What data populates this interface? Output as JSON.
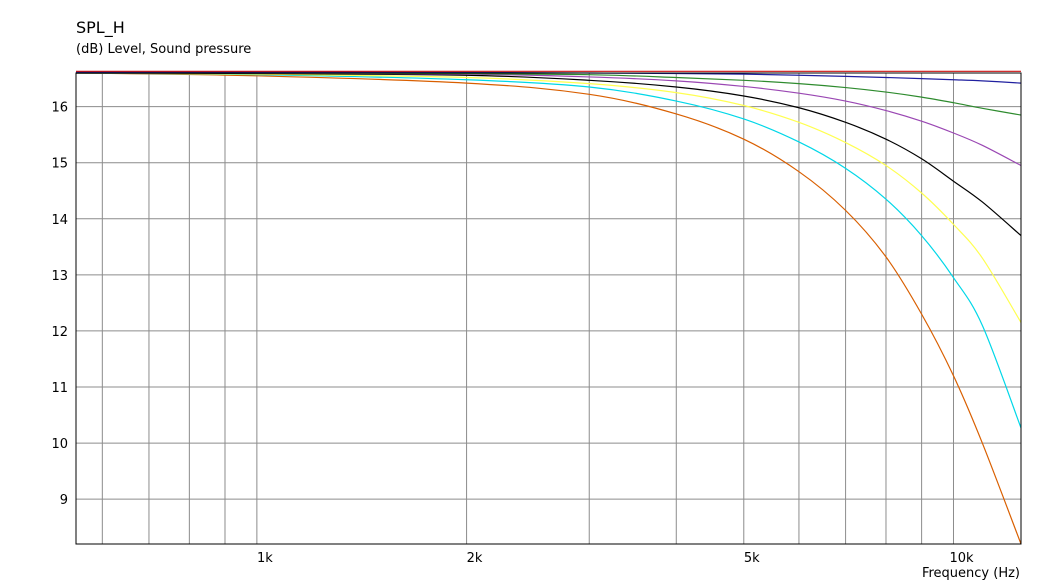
{
  "chart_data": {
    "type": "line",
    "title": "SPL_H",
    "ylabel": "(dB)  Level, Sound pressure",
    "xlabel": "Frequency  (Hz)",
    "x_scale": "log",
    "xlim": [
      550,
      12500
    ],
    "ylim": [
      8.2,
      16.6
    ],
    "grid": true,
    "x_ticks": [
      {
        "value": 1000,
        "label": "1k"
      },
      {
        "value": 2000,
        "label": "2k"
      },
      {
        "value": 5000,
        "label": "5k"
      },
      {
        "value": 10000,
        "label": "10k"
      }
    ],
    "y_ticks": [
      {
        "value": 16,
        "label": "16"
      },
      {
        "value": 15,
        "label": "15"
      },
      {
        "value": 14,
        "label": "14"
      },
      {
        "value": 13,
        "label": "13"
      },
      {
        "value": 12,
        "label": "12"
      },
      {
        "value": 11,
        "label": "11"
      },
      {
        "value": 10,
        "label": "10"
      },
      {
        "value": 9,
        "label": "9"
      }
    ],
    "x": [
      550,
      1000,
      2000,
      3000,
      4000,
      5000,
      6000,
      7000,
      8000,
      9000,
      10000,
      11000,
      12500
    ],
    "series": [
      {
        "color": "#d95f00",
        "values": [
          16.6,
          16.55,
          16.42,
          16.22,
          15.87,
          15.42,
          14.84,
          14.15,
          13.32,
          12.3,
          11.2,
          10.0,
          8.2
        ]
      },
      {
        "color": "#00d7e8",
        "values": [
          16.6,
          16.57,
          16.48,
          16.35,
          16.1,
          15.78,
          15.37,
          14.9,
          14.35,
          13.7,
          12.95,
          12.1,
          10.27
        ]
      },
      {
        "color": "#ffff50",
        "values": [
          16.6,
          16.58,
          16.52,
          16.41,
          16.25,
          16.02,
          15.72,
          15.36,
          14.95,
          14.46,
          13.9,
          13.3,
          12.15
        ]
      },
      {
        "color": "#000000",
        "values": [
          16.6,
          16.59,
          16.56,
          16.47,
          16.35,
          16.19,
          15.98,
          15.72,
          15.42,
          15.07,
          14.67,
          14.3,
          13.7
        ]
      },
      {
        "color": "#9a47b3",
        "values": [
          16.6,
          16.6,
          16.58,
          16.53,
          16.46,
          16.36,
          16.24,
          16.1,
          15.93,
          15.74,
          15.53,
          15.31,
          14.95
        ]
      },
      {
        "color": "#2e8b2e",
        "values": [
          16.6,
          16.6,
          16.59,
          16.57,
          16.52,
          16.47,
          16.41,
          16.34,
          16.26,
          16.17,
          16.07,
          15.97,
          15.85
        ]
      },
      {
        "color": "#2020a0",
        "values": [
          16.62,
          16.62,
          16.61,
          16.6,
          16.59,
          16.58,
          16.56,
          16.54,
          16.52,
          16.5,
          16.48,
          16.46,
          16.42
        ]
      },
      {
        "color": "#cc1010",
        "values": [
          16.63,
          16.63,
          16.63,
          16.63,
          16.63,
          16.63,
          16.63,
          16.63,
          16.63,
          16.63,
          16.63,
          16.63,
          16.63
        ]
      }
    ]
  }
}
